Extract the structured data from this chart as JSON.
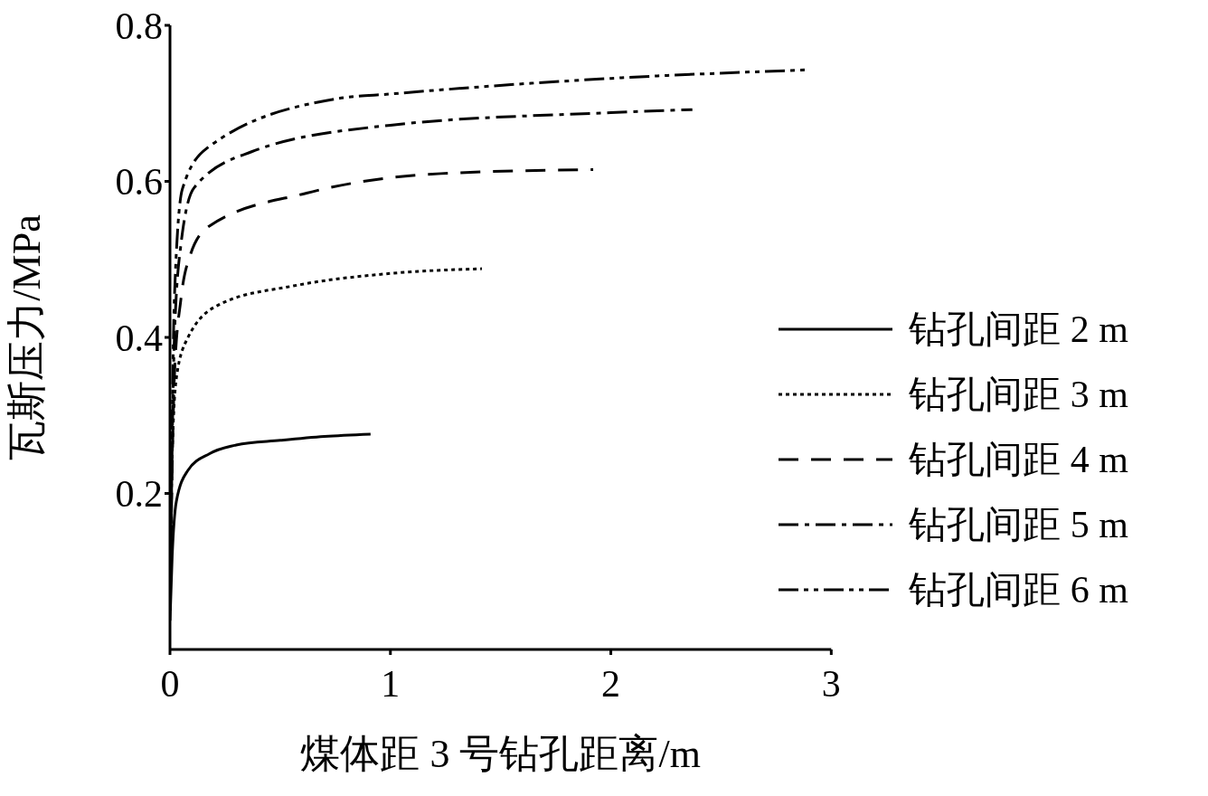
{
  "chart_data": {
    "type": "line",
    "xlabel": "煤体距 3 号钻孔距离/m",
    "ylabel": "瓦斯压力/MPa",
    "xlim": [
      0,
      3
    ],
    "xticks": [
      0,
      1,
      2,
      3
    ],
    "ylim": [
      0,
      0.8
    ],
    "yticks": [
      0.2,
      0.4,
      0.6,
      0.8
    ],
    "grid": false,
    "legend": "right",
    "marker": "none",
    "series": [
      {
        "name": "钻孔间距 2 m",
        "color": "#000000",
        "line_style": "solid",
        "x": [
          0,
          0.01,
          0.029,
          0.08,
          0.18,
          0.3,
          0.5,
          0.7,
          0.91
        ],
        "values": [
          0.037,
          0.12,
          0.19,
          0.229,
          0.251,
          0.262,
          0.268,
          0.273,
          0.276
        ]
      },
      {
        "name": "钻孔间距 3 m",
        "color": "#000000",
        "line_style": "dotted",
        "x": [
          0,
          0.01,
          0.03,
          0.08,
          0.23,
          0.56,
          1.0,
          1.415
        ],
        "values": [
          0.05,
          0.25,
          0.35,
          0.399,
          0.443,
          0.466,
          0.482,
          0.488
        ]
      },
      {
        "name": "钻孔间距 4 m",
        "color": "#000000",
        "line_style": "dashed",
        "x": [
          0,
          0.02,
          0.05,
          0.09,
          0.18,
          0.62,
          1.23,
          1.92
        ],
        "values": [
          0.05,
          0.35,
          0.45,
          0.504,
          0.543,
          0.585,
          0.61,
          0.615
        ]
      },
      {
        "name": "钻孔间距 5 m",
        "color": "#000000",
        "line_style": "dashdot",
        "x": [
          0,
          0.02,
          0.05,
          0.11,
          0.37,
          1.0,
          2.0,
          2.37
        ],
        "values": [
          0.05,
          0.4,
          0.52,
          0.592,
          0.638,
          0.672,
          0.688,
          0.692
        ]
      },
      {
        "name": "钻孔间距 6 m",
        "color": "#000000",
        "line_style": "dashdotdot",
        "x": [
          0,
          0.02,
          0.056,
          0.17,
          0.76,
          1.0,
          2.0,
          2.9
        ],
        "values": [
          0.05,
          0.45,
          0.59,
          0.643,
          0.706,
          0.712,
          0.732,
          0.743
        ]
      }
    ]
  }
}
